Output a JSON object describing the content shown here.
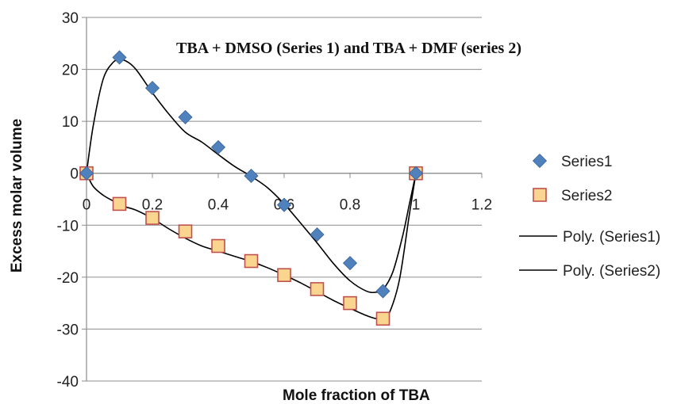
{
  "chart_data": {
    "type": "scatter",
    "title": "TBA + DMSO (Series 1) and TBA + DMF (series 2)",
    "xlabel": "Mole fraction of TBA",
    "ylabel": "Excess molar volume",
    "xlim": [
      0,
      1.2
    ],
    "ylim": [
      -40,
      30
    ],
    "x_ticks": [
      0,
      0.2,
      0.4,
      0.6,
      0.8,
      1,
      1.2
    ],
    "x_tick_labels": [
      "0",
      "0.2",
      "0.4",
      "0.6",
      "0.8",
      "1",
      "1.2"
    ],
    "y_ticks": [
      30,
      20,
      10,
      0,
      -10,
      -20,
      -30,
      -40
    ],
    "y_tick_labels": [
      "30",
      "20",
      "10",
      "0",
      "-10",
      "-20",
      "-30",
      "-40"
    ],
    "grid": "horizontal",
    "legend_position": "right",
    "series": [
      {
        "name": "Series1",
        "marker": "diamond",
        "color": "#4F81BD",
        "x": [
          0,
          0.1,
          0.2,
          0.3,
          0.4,
          0.5,
          0.6,
          0.7,
          0.8,
          0.9,
          1.0
        ],
        "y": [
          0,
          22.3,
          16.4,
          10.8,
          5.0,
          -0.5,
          -6.1,
          -11.8,
          -17.3,
          -22.7,
          0
        ]
      },
      {
        "name": "Series2",
        "marker": "square",
        "color": "#F9D58F",
        "edge_color": "#C0504D",
        "x": [
          0,
          0.1,
          0.2,
          0.3,
          0.4,
          0.5,
          0.6,
          0.7,
          0.8,
          0.9,
          1.0
        ],
        "y": [
          0,
          -5.9,
          -8.6,
          -11.2,
          -14.0,
          -16.9,
          -19.6,
          -22.3,
          -25.0,
          -28.0,
          0
        ]
      }
    ],
    "trendlines": [
      {
        "name": "Poly. (Series1)",
        "color": "#000000",
        "x": [
          0,
          0.02,
          0.05,
          0.08,
          0.1,
          0.12,
          0.15,
          0.2,
          0.25,
          0.3,
          0.35,
          0.4,
          0.45,
          0.5,
          0.55,
          0.6,
          0.65,
          0.7,
          0.75,
          0.8,
          0.85,
          0.88,
          0.9,
          0.93,
          0.96,
          0.98,
          1.0
        ],
        "y": [
          0,
          9,
          18,
          21.3,
          21.8,
          21.6,
          20.0,
          15.5,
          11.4,
          7.9,
          6.0,
          3.6,
          1.3,
          -0.6,
          -2.8,
          -5.9,
          -9.6,
          -13.4,
          -17.4,
          -20.7,
          -22.7,
          -22.9,
          -22.4,
          -19.0,
          -12.0,
          -6.0,
          0
        ]
      },
      {
        "name": "Poly. (Series2)",
        "color": "#000000",
        "x": [
          0,
          0.02,
          0.05,
          0.08,
          0.1,
          0.12,
          0.15,
          0.2,
          0.25,
          0.3,
          0.35,
          0.4,
          0.45,
          0.5,
          0.55,
          0.6,
          0.65,
          0.7,
          0.75,
          0.8,
          0.85,
          0.88,
          0.9,
          0.92,
          0.95,
          0.98,
          1.0
        ],
        "y": [
          0,
          -2.5,
          -4.2,
          -5.3,
          -6.0,
          -6.5,
          -7.1,
          -8.7,
          -10.7,
          -12.5,
          -14.0,
          -15.0,
          -16.0,
          -17.0,
          -18.2,
          -19.6,
          -21.1,
          -22.8,
          -24.5,
          -26.0,
          -27.4,
          -28.0,
          -28.0,
          -26.8,
          -20.5,
          -8.0,
          0
        ]
      }
    ]
  }
}
